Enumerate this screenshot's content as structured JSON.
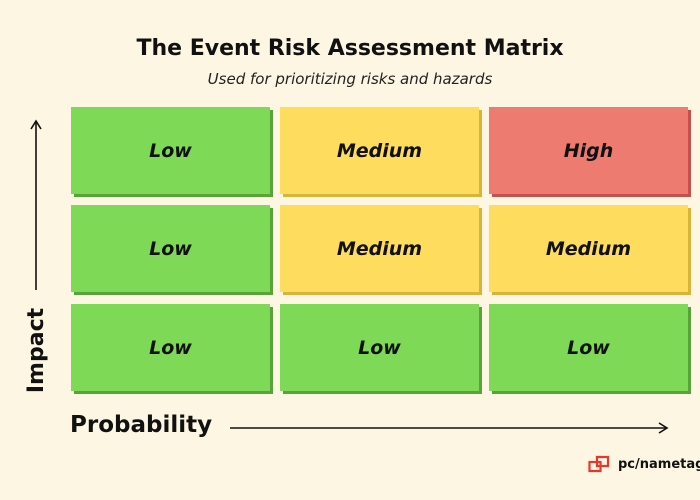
{
  "title": "The Event Risk Assessment Matrix",
  "subtitle": "Used for prioritizing risks and hazards",
  "axes": {
    "y_label": "Impact",
    "x_label": "Probability"
  },
  "matrix": {
    "rows": [
      [
        {
          "label": "Low",
          "level": "low"
        },
        {
          "label": "Medium",
          "level": "medium"
        },
        {
          "label": "High",
          "level": "high"
        }
      ],
      [
        {
          "label": "Low",
          "level": "low"
        },
        {
          "label": "Medium",
          "level": "medium"
        },
        {
          "label": "Medium",
          "level": "medium"
        }
      ],
      [
        {
          "label": "Low",
          "level": "low"
        },
        {
          "label": "Low",
          "level": "low"
        },
        {
          "label": "Low",
          "level": "low"
        }
      ]
    ]
  },
  "colors": {
    "low": "#7ed957",
    "medium": "#fedc5e",
    "high": "#ee7b70",
    "background": "#fdf6e3",
    "logo_accent": "#e8362d"
  },
  "logo": {
    "text": "pc/nametag",
    "mark": "®",
    "icon": "pc-nametag-logo-icon"
  }
}
